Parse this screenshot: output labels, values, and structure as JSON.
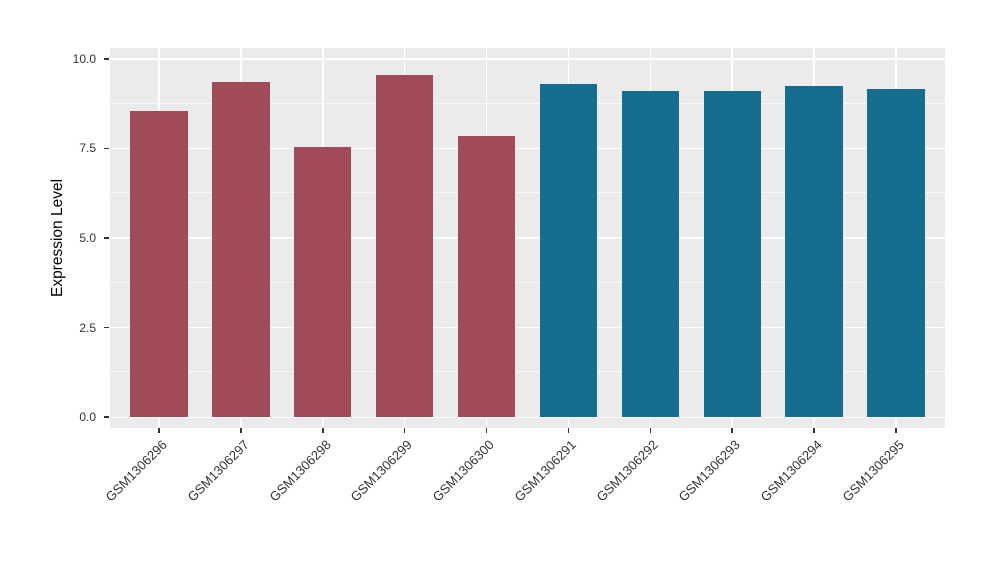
{
  "chart_data": {
    "type": "bar",
    "title": "",
    "xlabel": "",
    "ylabel": "Expression Level",
    "categories": [
      "GSM1306296",
      "GSM1306297",
      "GSM1306298",
      "GSM1306299",
      "GSM1306300",
      "GSM1306291",
      "GSM1306292",
      "GSM1306293",
      "GSM1306294",
      "GSM1306295"
    ],
    "values": [
      8.55,
      9.35,
      7.55,
      9.55,
      7.85,
      9.3,
      9.1,
      9.1,
      9.25,
      9.15
    ],
    "bar_colors": [
      "#A04B57",
      "#A04B57",
      "#A04B57",
      "#A04B57",
      "#A04B57",
      "#166D8F",
      "#166D8F",
      "#166D8F",
      "#166D8F",
      "#166D8F"
    ],
    "group_colors": {
      "left-group": "#A04B57",
      "right-group": "#166D8F"
    },
    "ylim": [
      0,
      10
    ],
    "yticks": [
      0.0,
      2.5,
      5.0,
      7.5,
      10.0
    ],
    "ytick_labels": [
      "0.0",
      "2.5",
      "5.0",
      "7.5",
      "10.0"
    ],
    "yticks_minor": [
      1.25,
      3.75,
      6.25,
      8.75
    ],
    "grid": true,
    "legend": "none",
    "panel_bg": "#EBEBEB",
    "grid_color": "#FFFFFF",
    "x_label_rotation_deg": 45
  }
}
